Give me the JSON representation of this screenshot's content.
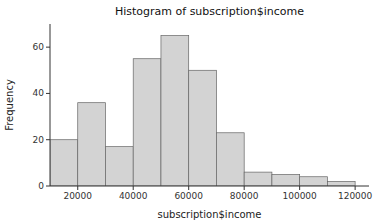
{
  "chart_data": {
    "type": "histogram",
    "title": "Histogram of subscription$income",
    "x_label": "subscription$income",
    "y_label": "Frequency",
    "bins": [
      10000,
      20000,
      30000,
      40000,
      50000,
      60000,
      70000,
      80000,
      90000,
      100000,
      110000,
      120000
    ],
    "values": [
      20,
      36,
      17,
      55,
      65,
      50,
      23,
      6,
      5,
      4,
      2
    ],
    "color": "#d3d3d3",
    "xlim": [
      10000,
      125000
    ],
    "ylim": [
      0,
      70
    ],
    "xticks": [
      20000,
      40000,
      60000,
      80000,
      100000,
      120000
    ],
    "yticks": [
      0,
      20,
      40,
      60
    ],
    "grid": false
  }
}
